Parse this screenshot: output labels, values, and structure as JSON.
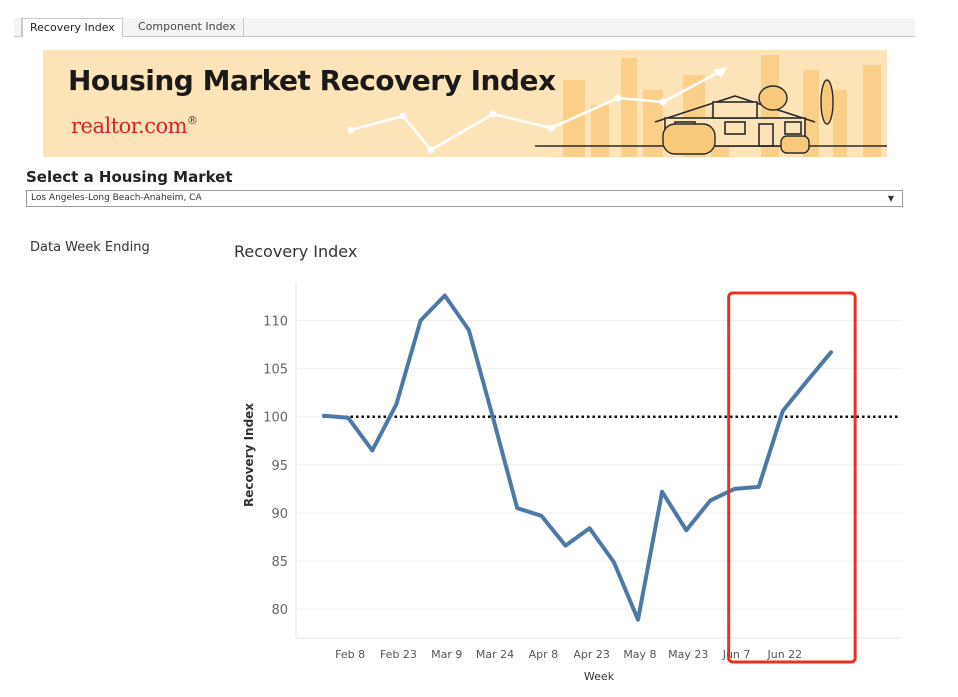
{
  "tabs": [
    {
      "label": "Recovery Index",
      "active": true
    },
    {
      "label": "Component Index",
      "active": false
    }
  ],
  "banner": {
    "title": "Housing Market Recovery Index",
    "brand": "realtor.com",
    "brand_mark": "®",
    "colors": {
      "background": "#fde3b8",
      "brand": "#d92228"
    }
  },
  "market_selector": {
    "label": "Select a Housing Market",
    "value": "Los Angeles-Long Beach-Anaheim, CA",
    "arrow": "▼"
  },
  "side_panel": {
    "label": "Data Week Ending"
  },
  "highlight": {
    "color": "#e8321e",
    "from_index": 18,
    "to_index": 21
  },
  "chart_data": {
    "type": "line",
    "title": "Recovery Index",
    "xlabel": "Week",
    "ylabel": "Recovery Index",
    "ylim": [
      77,
      114
    ],
    "yticks": [
      80,
      85,
      90,
      95,
      100,
      105,
      110
    ],
    "baseline": 100,
    "grid": true,
    "line_color": "#4e79a7",
    "x_tick_labels": [
      {
        "label": "Feb 8",
        "x": 1
      },
      {
        "label": "Feb 23",
        "x": 3
      },
      {
        "label": "Mar 9",
        "x": 5
      },
      {
        "label": "Mar 24",
        "x": 7
      },
      {
        "label": "Apr 8",
        "x": 9
      },
      {
        "label": "Apr 23",
        "x": 11
      },
      {
        "label": "May 8",
        "x": 13
      },
      {
        "label": "May 23",
        "x": 15
      },
      {
        "label": "Jun 7",
        "x": 17
      },
      {
        "label": "Jun 22",
        "x": 19
      }
    ],
    "series": [
      {
        "values": [
          100.1,
          99.9,
          96.5,
          101.3,
          110.0,
          112.6,
          109.0,
          99.9,
          90.5,
          89.7,
          86.6,
          88.4,
          84.9,
          78.9,
          92.2,
          88.2,
          91.3,
          92.5,
          92.7,
          100.6,
          103.7,
          106.7
        ]
      }
    ]
  }
}
